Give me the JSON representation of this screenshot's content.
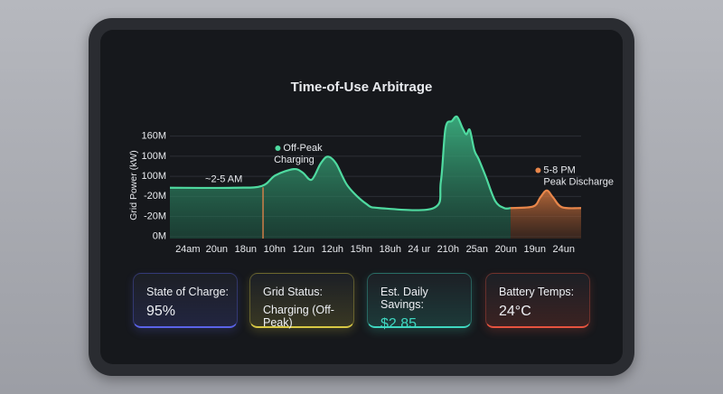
{
  "chart_data": {
    "type": "area",
    "title": "Time-of-Use Arbitrage",
    "y_label": "Grid Power (kW)",
    "xlim": [
      -0.62,
      13.6
    ],
    "xticks": [
      {
        "value": 0,
        "label": "24am"
      },
      {
        "value": 1,
        "label": "20un"
      },
      {
        "value": 2,
        "label": "18un"
      },
      {
        "value": 3,
        "label": "10hn"
      },
      {
        "value": 4,
        "label": "12un"
      },
      {
        "value": 5,
        "label": "12uh"
      },
      {
        "value": 6,
        "label": "15hn"
      },
      {
        "value": 7,
        "label": "18uh"
      },
      {
        "value": 8,
        "label": "24 ur"
      },
      {
        "value": 9,
        "label": "210h"
      },
      {
        "value": 10,
        "label": "25an"
      },
      {
        "value": 11,
        "label": "20un"
      },
      {
        "value": 12,
        "label": "19un"
      },
      {
        "value": 13,
        "label": "24un"
      }
    ],
    "ylim": [
      -0.1,
      6.2
    ],
    "yticks": [
      {
        "value": 0,
        "label": "0M"
      },
      {
        "value": 1,
        "label": "-20M"
      },
      {
        "value": 2,
        "label": "-20M"
      },
      {
        "value": 3,
        "label": "100M"
      },
      {
        "value": 4,
        "label": "100M"
      },
      {
        "value": 5,
        "label": "160M"
      }
    ],
    "grid": true,
    "series": [
      {
        "color": "#4fdaa0",
        "x": [
          -0.62,
          1.62,
          2.56,
          3.03,
          3.66,
          3.97,
          4.28,
          4.59,
          4.84,
          5.13,
          5.53,
          6.16,
          6.63,
          8.5,
          8.75,
          8.91,
          9.13,
          9.31,
          9.5,
          9.63,
          9.75,
          9.91,
          10.06,
          10.31,
          10.63,
          10.94,
          11.16
        ],
        "values": [
          2.43,
          2.43,
          2.52,
          3.05,
          3.36,
          3.19,
          2.83,
          3.63,
          3.98,
          3.63,
          2.52,
          1.64,
          1.42,
          1.42,
          2.74,
          5.4,
          5.75,
          5.97,
          5.4,
          5.09,
          5.31,
          4.29,
          3.85,
          2.96,
          1.77,
          1.42,
          1.42
        ]
      },
      {
        "color": "#e8864a",
        "x": [
          11.16,
          11.94,
          12.19,
          12.41,
          12.63,
          12.94,
          13.6
        ],
        "values": [
          1.42,
          1.5,
          1.95,
          2.3,
          1.95,
          1.46,
          1.42
        ]
      }
    ],
    "annotations": [
      {
        "text": "~2-5 AM",
        "x": 0.6,
        "y": 2.85
      },
      {
        "text": "Off-Peak",
        "text2": "Charging",
        "x": 3.3,
        "y": 4.4,
        "color": "#4fdaa0",
        "marker_x": 2.6
      },
      {
        "text": "5-8 PM",
        "text2": "Peak Discharge",
        "x": 12.3,
        "y": 3.3,
        "color": "#e8864a"
      }
    ]
  },
  "cards": [
    {
      "label": "State of Charge:",
      "value": "95%",
      "color": "#5a63e8"
    },
    {
      "label": "Grid Status:",
      "value": "Charging (Off-Peak)",
      "color": "#d8c845"
    },
    {
      "label": "Est. Daily Savings:",
      "value": "$2.85",
      "color": "#3fd6c0"
    },
    {
      "label": "Battery Temps:",
      "value": "24°C",
      "color": "#e5533f"
    }
  ]
}
